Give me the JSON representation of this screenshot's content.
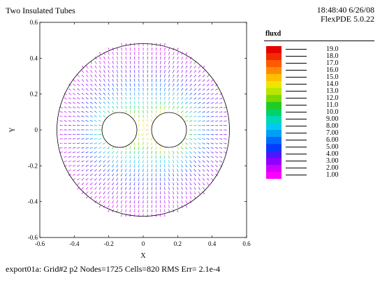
{
  "header": {
    "title": "Two Insulated Tubes",
    "timestamp": "18:48:40 6/26/08",
    "version": "FlexPDE 5.0.22"
  },
  "footer": {
    "status": "export01a:  Grid#2  p2  Nodes=1725 Cells=820 RMS Err= 2.1e-4"
  },
  "plot": {
    "x_axis_label": "X",
    "y_axis_label": "Y",
    "x_ticks": [
      "-0.6",
      "-0.4",
      "-0.2",
      "0",
      "0.2",
      "0.4",
      "0.6"
    ],
    "y_ticks": [
      "0.6",
      "0.4",
      "0.2",
      "0",
      "-0.2",
      "-0.4",
      "-0.6"
    ],
    "xlim": [
      -0.6,
      0.6
    ],
    "ylim": [
      -0.6,
      0.6
    ],
    "outer_radius": 0.5,
    "left_hole": {
      "cx": -0.14,
      "cy": 0.0,
      "r": 0.1
    },
    "right_hole": {
      "cx": 0.15,
      "cy": 0.0,
      "r": 0.1
    }
  },
  "legend": {
    "title": "fluxd",
    "items": [
      {
        "value": "19.0",
        "color": "#e60000"
      },
      {
        "value": "18.0",
        "color": "#f22b00"
      },
      {
        "value": "17.0",
        "color": "#ff5a00"
      },
      {
        "value": "16.0",
        "color": "#ff8c00"
      },
      {
        "value": "15.0",
        "color": "#ffbe00"
      },
      {
        "value": "14.0",
        "color": "#f0e500"
      },
      {
        "value": "13.0",
        "color": "#b7e600"
      },
      {
        "value": "12.0",
        "color": "#78d800"
      },
      {
        "value": "11.0",
        "color": "#21cc21"
      },
      {
        "value": "10.0",
        "color": "#00d26d"
      },
      {
        "value": "9.00",
        "color": "#00d8b3"
      },
      {
        "value": "8.00",
        "color": "#00caf2"
      },
      {
        "value": "7.00",
        "color": "#009ff7"
      },
      {
        "value": "6.00",
        "color": "#0069ff"
      },
      {
        "value": "5.00",
        "color": "#003dff"
      },
      {
        "value": "4.00",
        "color": "#4b17ff"
      },
      {
        "value": "3.00",
        "color": "#8d00ff"
      },
      {
        "value": "2.00",
        "color": "#cf00ff"
      },
      {
        "value": "1.00",
        "color": "#ff00ff"
      }
    ]
  }
}
